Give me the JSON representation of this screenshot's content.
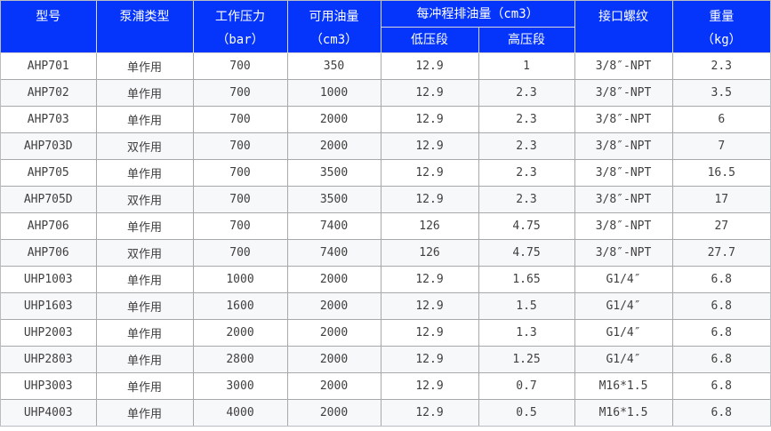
{
  "table": {
    "accent_color": "#0535fa",
    "row_alt_color": "#f7f8fa",
    "grid_color": "#a6aaad",
    "header": {
      "model": "型号",
      "pump_type": "泵浦类型",
      "pressure_line1": "工作压力",
      "pressure_line2": "（bar）",
      "oil_line1": "可用油量",
      "oil_line2": "（cm3）",
      "per_stroke": "每冲程排油量（cm3）",
      "low_stage": "低压段",
      "high_stage": "高压段",
      "thread": "接口螺纹",
      "weight_line1": "重量",
      "weight_line2": "（kg）"
    },
    "rows": [
      [
        "AHP701",
        "单作用",
        "700",
        "350",
        "12.9",
        "1",
        "3/8″-NPT",
        "2.3"
      ],
      [
        "AHP702",
        "单作用",
        "700",
        "1000",
        "12.9",
        "2.3",
        "3/8″-NPT",
        "3.5"
      ],
      [
        "AHP703",
        "单作用",
        "700",
        "2000",
        "12.9",
        "2.3",
        "3/8″-NPT",
        "6"
      ],
      [
        "AHP703D",
        "双作用",
        "700",
        "2000",
        "12.9",
        "2.3",
        "3/8″-NPT",
        "7"
      ],
      [
        "AHP705",
        "单作用",
        "700",
        "3500",
        "12.9",
        "2.3",
        "3/8″-NPT",
        "16.5"
      ],
      [
        "AHP705D",
        "双作用",
        "700",
        "3500",
        "12.9",
        "2.3",
        "3/8″-NPT",
        "17"
      ],
      [
        "AHP706",
        "单作用",
        "700",
        "7400",
        "126",
        "4.75",
        "3/8″-NPT",
        "27"
      ],
      [
        "AHP706",
        "双作用",
        "700",
        "7400",
        "126",
        "4.75",
        "3/8″-NPT",
        "27.7"
      ],
      [
        "UHP1003",
        "单作用",
        "1000",
        "2000",
        "12.9",
        "1.65",
        "G1/4″",
        "6.8"
      ],
      [
        "UHP1603",
        "单作用",
        "1600",
        "2000",
        "12.9",
        "1.5",
        "G1/4″",
        "6.8"
      ],
      [
        "UHP2003",
        "单作用",
        "2000",
        "2000",
        "12.9",
        "1.3",
        "G1/4″",
        "6.8"
      ],
      [
        "UHP2803",
        "单作用",
        "2800",
        "2000",
        "12.9",
        "1.25",
        "G1/4″",
        "6.8"
      ],
      [
        "UHP3003",
        "单作用",
        "3000",
        "2000",
        "12.9",
        "0.7",
        "M16*1.5",
        "6.8"
      ],
      [
        "UHP4003",
        "单作用",
        "4000",
        "2000",
        "12.9",
        "0.5",
        "M16*1.5",
        "6.8"
      ]
    ]
  }
}
